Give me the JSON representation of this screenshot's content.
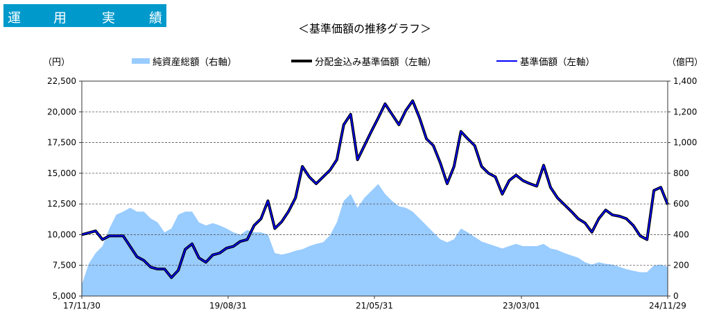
{
  "header": {
    "chars": [
      "運",
      "用",
      "実",
      "績"
    ]
  },
  "chart_data": {
    "type": "line+area",
    "title": "＜基準価額の推移グラフ＞",
    "ylabel_left": "（円）",
    "ylabel_right": "（億円）",
    "ylim_left": [
      5000,
      22500
    ],
    "ylim_right": [
      0,
      1400
    ],
    "yticks_left": [
      "5,000",
      "7,500",
      "10,000",
      "12,500",
      "15,000",
      "17,500",
      "20,000",
      "22,500"
    ],
    "yticks_left_values": [
      5000,
      7500,
      10000,
      12500,
      15000,
      17500,
      20000,
      22500
    ],
    "yticks_right": [
      "0",
      "200",
      "400",
      "600",
      "800",
      "1,000",
      "1,200",
      "1,400"
    ],
    "yticks_right_values": [
      0,
      200,
      400,
      600,
      800,
      1000,
      1200,
      1400
    ],
    "xticks": [
      {
        "label": "17/11/30",
        "index": 0
      },
      {
        "label": "19/08/31",
        "index": 21.1
      },
      {
        "label": "21/05/31",
        "index": 42.2
      },
      {
        "label": "23/03/01",
        "index": 63.4
      },
      {
        "label": "24/11/29",
        "index": 84.5
      }
    ],
    "x_index_range": [
      0,
      84.5
    ],
    "grid": "horizontal dashed",
    "legend_placement": "top",
    "colors": {
      "net_assets": "#99ccff",
      "dividend_adjusted": "#000000",
      "nav": "#0000ff",
      "header": "#0099cc"
    },
    "series": [
      {
        "name": "純資産総額（右軸）",
        "axis": "right",
        "kind": "area",
        "values": [
          75,
          210,
          280,
          325,
          440,
          530,
          550,
          575,
          550,
          550,
          505,
          480,
          415,
          440,
          530,
          550,
          550,
          480,
          460,
          475,
          460,
          440,
          415,
          400,
          430,
          415,
          415,
          400,
          280,
          270,
          280,
          295,
          305,
          325,
          340,
          350,
          395,
          480,
          620,
          665,
          575,
          640,
          685,
          730,
          665,
          620,
          585,
          575,
          550,
          505,
          460,
          415,
          370,
          350,
          370,
          440,
          415,
          385,
          355,
          340,
          325,
          310,
          325,
          340,
          325,
          325,
          325,
          340,
          310,
          300,
          280,
          265,
          250,
          220,
          205,
          220,
          210,
          205,
          190,
          175,
          165,
          155,
          155,
          200,
          205,
          190
        ]
      },
      {
        "name": "分配金込み基準価額（左軸）",
        "axis": "left",
        "kind": "line",
        "values": [
          10000,
          10150,
          10300,
          9600,
          9900,
          9900,
          9900,
          9050,
          8200,
          7900,
          7350,
          7200,
          7200,
          6500,
          7100,
          8800,
          9250,
          8100,
          7750,
          8350,
          8500,
          8900,
          9050,
          9450,
          9600,
          10750,
          11300,
          12750,
          10500,
          11050,
          11900,
          13000,
          15550,
          14700,
          14150,
          14700,
          15250,
          16100,
          18950,
          19800,
          16100,
          17250,
          18400,
          19500,
          20650,
          19800,
          18950,
          20100,
          20900,
          19500,
          17800,
          17250,
          15850,
          14150,
          15550,
          18400,
          17800,
          17250,
          15550,
          15000,
          14700,
          13300,
          14400,
          14850,
          14400,
          14150,
          13950,
          15650,
          13850,
          13000,
          12450,
          11900,
          11300,
          10950,
          10200,
          11300,
          12000,
          11600,
          11500,
          11300,
          10750,
          9900,
          9600,
          13600,
          13850,
          12450
        ]
      },
      {
        "name": "基準価額（左軸）",
        "axis": "left",
        "kind": "line",
        "values": [
          10000,
          10150,
          10300,
          9600,
          9900,
          9900,
          9900,
          9050,
          8200,
          7900,
          7350,
          7200,
          7200,
          6500,
          7100,
          8800,
          9250,
          8100,
          7750,
          8350,
          8500,
          8900,
          9050,
          9450,
          9600,
          10750,
          11300,
          12750,
          10500,
          11050,
          11900,
          13000,
          15550,
          14700,
          14150,
          14700,
          15250,
          16100,
          18950,
          19800,
          16100,
          17250,
          18400,
          19500,
          20650,
          19800,
          18950,
          20100,
          20900,
          19500,
          17800,
          17250,
          15850,
          14150,
          15550,
          18400,
          17800,
          17250,
          15550,
          15000,
          14700,
          13300,
          14400,
          14850,
          14400,
          14150,
          13950,
          15650,
          13850,
          13000,
          12450,
          11900,
          11300,
          10950,
          10200,
          11300,
          12000,
          11600,
          11500,
          11300,
          10750,
          9900,
          9600,
          13600,
          13850,
          12450
        ]
      }
    ]
  }
}
